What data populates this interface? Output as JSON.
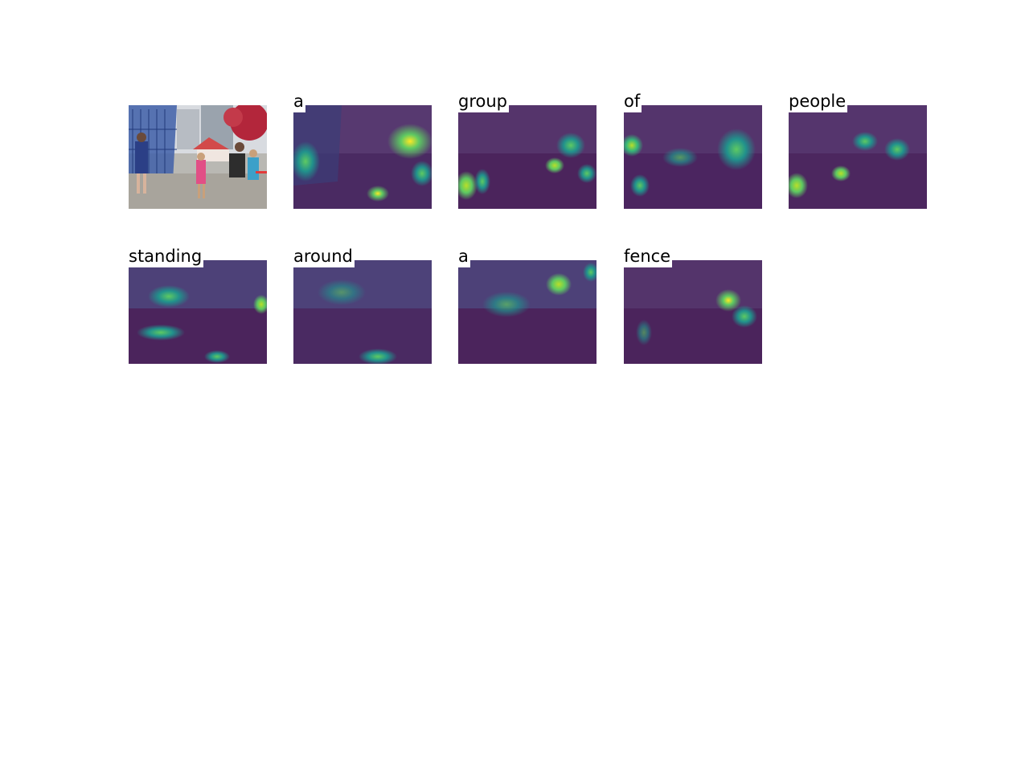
{
  "original_image": {
    "description_name": "source-photo"
  },
  "words": [
    "a",
    "group",
    "of",
    "people",
    "standing",
    "around",
    "a",
    "fence"
  ],
  "colors": {
    "overlay_dark": "#4b1d5e",
    "overlay_mid": "#3b528b",
    "hot_teal": "#21918c",
    "hot_green": "#5ec962",
    "hot_yellow": "#fde725"
  }
}
